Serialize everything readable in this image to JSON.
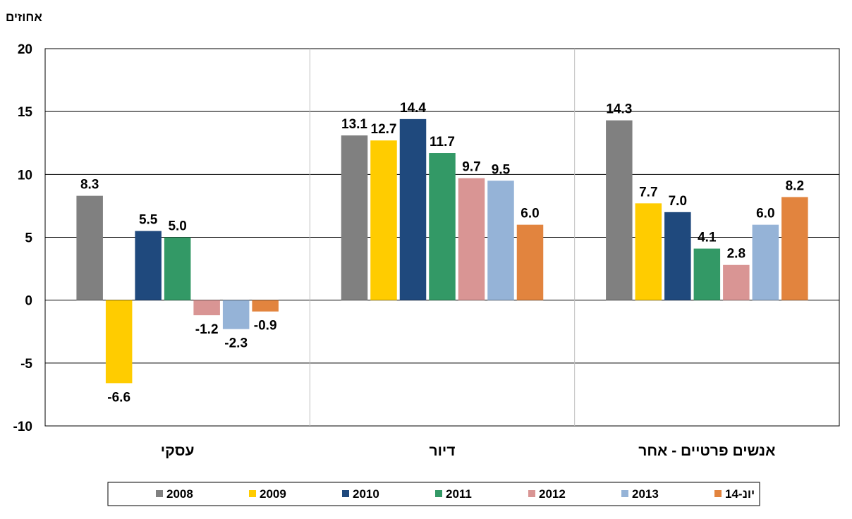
{
  "chart_data": {
    "type": "bar",
    "ylabel": "אחוזים",
    "ylim": [
      -10,
      20
    ],
    "yticks": [
      20,
      15,
      10,
      5,
      0,
      -5,
      -10
    ],
    "grid": true,
    "legend_position": "bottom",
    "categories": [
      "עסקי",
      "דיור",
      "אנשים פרטיים - אחר"
    ],
    "series": [
      {
        "name": "2008",
        "color": "#808080",
        "values": [
          8.3,
          13.1,
          14.3
        ],
        "labels": [
          "8.3",
          "13.1",
          "14.3"
        ]
      },
      {
        "name": "2009",
        "color": "#FFCC00",
        "values": [
          -6.6,
          12.7,
          7.7
        ],
        "labels": [
          "-6.6",
          "12.7",
          "7.7"
        ]
      },
      {
        "name": "2010",
        "color": "#1F497D",
        "values": [
          5.5,
          14.4,
          7.0
        ],
        "labels": [
          "5.5",
          "14.4",
          "7.0"
        ]
      },
      {
        "name": "2011",
        "color": "#339966",
        "values": [
          5.0,
          11.7,
          4.1
        ],
        "labels": [
          "5.0",
          "11.7",
          "4.1"
        ]
      },
      {
        "name": "2012",
        "color": "#D99594",
        "values": [
          -1.2,
          9.7,
          2.8
        ],
        "labels": [
          "-1.2",
          "9.7",
          "2.8"
        ]
      },
      {
        "name": "2013",
        "color": "#95B3D7",
        "values": [
          -2.3,
          9.5,
          6.0
        ],
        "labels": [
          "-2.3",
          "9.5",
          "6.0"
        ]
      },
      {
        "name": "יונ-14",
        "color": "#E2843E",
        "values": [
          -0.9,
          6.0,
          8.2
        ],
        "labels": [
          "-0.9",
          "6.0",
          "8.2"
        ]
      }
    ]
  }
}
